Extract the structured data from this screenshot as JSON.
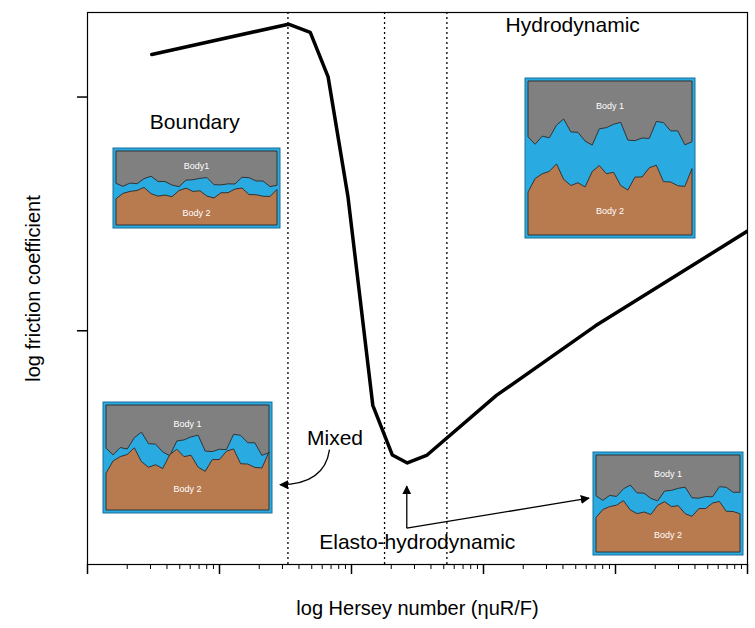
{
  "chart_data": {
    "type": "line",
    "x_label": "log Hersey number (ηuR/F)",
    "y_label": "log friction coefficient",
    "log": true,
    "tick_labels": false,
    "color": "#000000",
    "xlim": [
      1,
      100000
    ],
    "ylim": [
      0.001,
      0.23
    ],
    "xticks": [
      1,
      2,
      3,
      4,
      5,
      6,
      7,
      8,
      9,
      10,
      20,
      30,
      40,
      50,
      60,
      70,
      80,
      90,
      100,
      200,
      300,
      400,
      500,
      600,
      700,
      800,
      900,
      1000,
      2000,
      3000,
      4000,
      5000,
      6000,
      7000,
      8000,
      9000,
      10000,
      20000,
      30000,
      40000,
      50000,
      60000,
      70000,
      80000,
      90000,
      100000
    ],
    "yticks": [
      0.01,
      0.1
    ],
    "x": [
      3.07,
      33.3,
      48.7,
      66.5,
      94,
      145,
      204,
      265,
      374,
      1253,
      7050,
      100000
    ],
    "values": [
      0.152,
      0.205,
      0.189,
      0.122,
      0.0375,
      0.0048,
      0.00294,
      0.00272,
      0.00294,
      0.00529,
      0.0105,
      0.0267
    ],
    "boundaries": [
      33,
      178,
      528
    ],
    "line_style": "dotted",
    "regions": [
      {
        "label": "Boundary",
        "x": 6.5,
        "y": 0.078,
        "inset": [
          "Body1",
          "Body 2"
        ]
      },
      {
        "label": "Hydrodynamic",
        "x": 4740,
        "y": 0.202,
        "inset": [
          "Body 1",
          "Body 2"
        ]
      },
      {
        "label": "Mixed",
        "x": 75,
        "y": 0.00347,
        "inset": [
          "Body 1",
          "Body 2"
        ]
      },
      {
        "label": "Elasto-hydrodynamic",
        "x": 315,
        "y": 0.00124,
        "inset": [
          "Body 1",
          "Body 2"
        ]
      }
    ]
  }
}
